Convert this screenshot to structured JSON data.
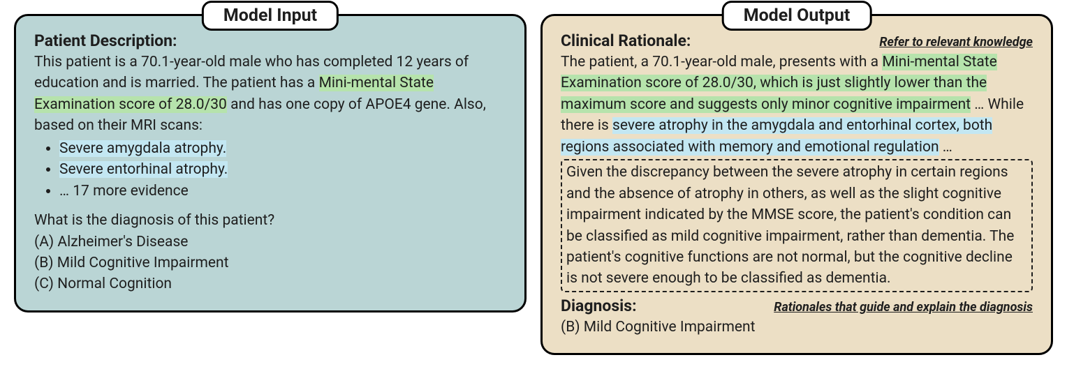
{
  "colors": {
    "input_bg": "#bad5d5",
    "output_bg": "#ecdfc5",
    "panel_border": "#000000",
    "title_bg": "#ffffff",
    "text": "#1e1e1e",
    "highlight_green": "#b6e3ac",
    "highlight_blue": "#c3e7f2",
    "dashed_border": "#1e1e1e"
  },
  "typography": {
    "title_fontsize": 25,
    "section_header_fontsize": 23,
    "body_fontsize": 21,
    "annotation_fontsize": 18,
    "title_fontweight": 700,
    "header_fontweight": 700
  },
  "layout": {
    "panel_border_radius": 20,
    "panel_border_width": 3,
    "title_border_radius": 14,
    "gap": 20,
    "input_panel_width": 720,
    "output_panel_width": 770
  },
  "input_panel": {
    "title": "Model Input",
    "header": "Patient Description:",
    "intro_pre": "This patient is a 70.1-year-old male who has completed 12 years of education and is married. The patient has a ",
    "intro_hl_green": "Mini-mental State Examination score of 28.0/30",
    "intro_post": " and has one copy of APOE4 gene. Also, based on their MRI scans:",
    "evidence": [
      {
        "text": "Severe amygdala atrophy.",
        "highlight": "blue"
      },
      {
        "text": "Severe entorhinal atrophy.",
        "highlight": "blue"
      },
      {
        "text": "… 17 more evidence",
        "highlight": null
      }
    ],
    "question": "What is the diagnosis of this patient?",
    "options": [
      "(A) Alzheimer's Disease",
      "(B) Mild Cognitive Impairment",
      "(C) Normal Cognition"
    ]
  },
  "output_panel": {
    "title": "Model Output",
    "rationale_header": "Clinical Rationale:",
    "annotation_top": "Refer to relevant knowledge",
    "r_pre1": "The patient, a 70.1-year-old male, presents with a ",
    "r_hl_green": "Mini-mental State Examination score of 28.0/30, which is just slightly lower than the maximum score and suggests only minor cognitive impairment",
    "r_mid1": " … While there is ",
    "r_hl_blue": "severe atrophy in the amygdala and entorhinal cortex, both regions associated with memory and emotional regulation",
    "r_post1": " …",
    "rationale_boxed": "Given the discrepancy between the severe atrophy in certain regions and the absence of atrophy in others, as well as the slight cognitive impairment indicated by the MMSE score, the patient's condition can be classified as mild cognitive impairment, rather than dementia. The patient's cognitive functions are not normal, but the cognitive decline is not severe enough to be classified as dementia.",
    "diagnosis_header": "Diagnosis:",
    "annotation_bottom": "Rationales that guide and explain the diagnosis",
    "diagnosis_answer": "(B) Mild Cognitive Impairment"
  }
}
